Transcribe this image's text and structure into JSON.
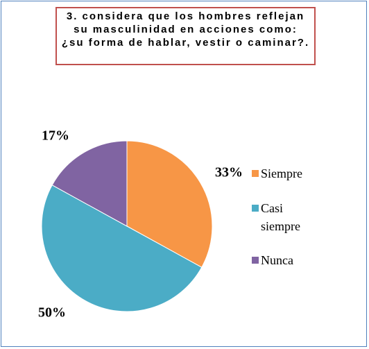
{
  "chart_data": {
    "type": "pie",
    "title": "3. considera que los hombres reflejan su masculinidad en acciones como: ¿su forma de hablar, vestir o caminar?.",
    "categories": [
      "Siempre",
      "Casi siempre",
      "Nunca"
    ],
    "values": [
      33,
      50,
      17
    ],
    "value_labels": [
      "33%",
      "50%",
      "17%"
    ],
    "colors": [
      "#f79646",
      "#4bacc6",
      "#8064a2"
    ]
  }
}
